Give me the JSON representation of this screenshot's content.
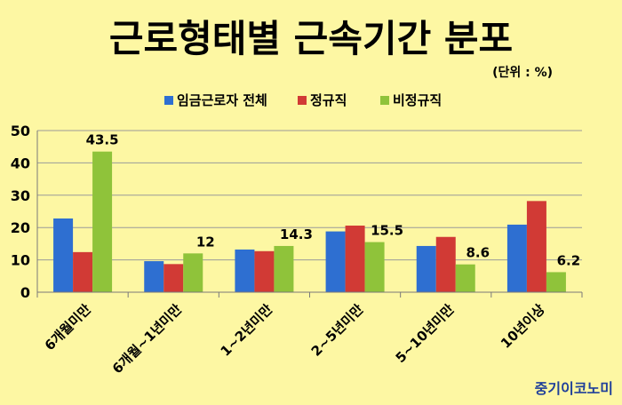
{
  "chart_data": {
    "type": "bar",
    "title": "근로형태별 근속기간 분포",
    "unit_note": "(단위 : %)",
    "categories": [
      "6개월미만",
      "6개월~1년미만",
      "1~2년미만",
      "2~5년미만",
      "5~10년미만",
      "10년이상"
    ],
    "series": [
      {
        "name": "임금근로자 전체",
        "color": "#2e6fd1",
        "values": [
          22.8,
          9.6,
          13.2,
          18.8,
          14.3,
          20.9
        ]
      },
      {
        "name": "정규직",
        "color": "#d13a35",
        "values": [
          12.4,
          8.7,
          12.7,
          20.6,
          17.1,
          28.2
        ]
      },
      {
        "name": "비정규직",
        "color": "#8fc33a",
        "values": [
          43.5,
          12,
          14.3,
          15.5,
          8.6,
          6.2
        ]
      }
    ],
    "data_labels": {
      "series_index": 2,
      "labels": [
        "43.5",
        "12",
        "14.3",
        "15.5",
        "8.6",
        "6.2"
      ]
    },
    "ylim": [
      0,
      50
    ],
    "yticks": [
      0,
      10,
      20,
      30,
      40,
      50
    ],
    "legend_position": "top",
    "grid": true
  },
  "brand": {
    "text": "중기이코노미",
    "color": "#1f3f9a"
  }
}
